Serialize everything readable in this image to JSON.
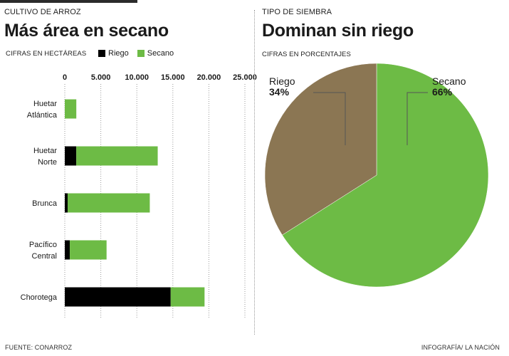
{
  "left": {
    "kicker": "CULTIVO DE ARROZ",
    "title": "Más área en secano",
    "subtitle": "CIFRAS EN HECTÁREAS"
  },
  "right": {
    "kicker": "TIPO DE SIEMBRA",
    "title": "Dominan sin riego",
    "subtitle": "CIFRAS EN PORCENTAJES"
  },
  "footer": {
    "source": "FUENTE: CONARROZ",
    "credit": "INFOGRAFÍA/ LA NACIÓN"
  },
  "colors": {
    "riego_bar": "#000000",
    "secano": "#6dbb45",
    "riego_pie": "#8b7653"
  },
  "chart_data": [
    {
      "type": "bar",
      "orientation": "horizontal",
      "stacked": true,
      "title": "Más área en secano",
      "subtitle": "CIFRAS EN HECTÁREAS",
      "categories": [
        [
          "Huetar",
          "Atlántica"
        ],
        [
          "Huetar",
          "Norte"
        ],
        [
          "Brunca"
        ],
        [
          "Pacífico",
          "Central"
        ],
        [
          "Chorotega"
        ]
      ],
      "series": [
        {
          "name": "Riego",
          "color": "#000000",
          "values": [
            0,
            1600,
            400,
            700,
            14700
          ]
        },
        {
          "name": "Secano",
          "color": "#6dbb45",
          "values": [
            1600,
            11300,
            11400,
            5100,
            4700
          ]
        }
      ],
      "xlim": [
        0,
        25000
      ],
      "xticks": [
        0,
        5000,
        10000,
        15000,
        20000,
        25000
      ],
      "tick_labels": [
        "0",
        "5.000",
        "10.000",
        "15.000",
        "20.000",
        "25.000"
      ],
      "grid": "vertical-dotted",
      "legend": "top"
    },
    {
      "type": "pie",
      "title": "Dominan sin riego",
      "subtitle": "CIFRAS EN PORCENTAJES",
      "slices": [
        {
          "name": "Riego",
          "value": 34,
          "label": "34%",
          "color": "#8b7653"
        },
        {
          "name": "Secano",
          "value": 66,
          "label": "66%",
          "color": "#6dbb45"
        }
      ]
    }
  ]
}
